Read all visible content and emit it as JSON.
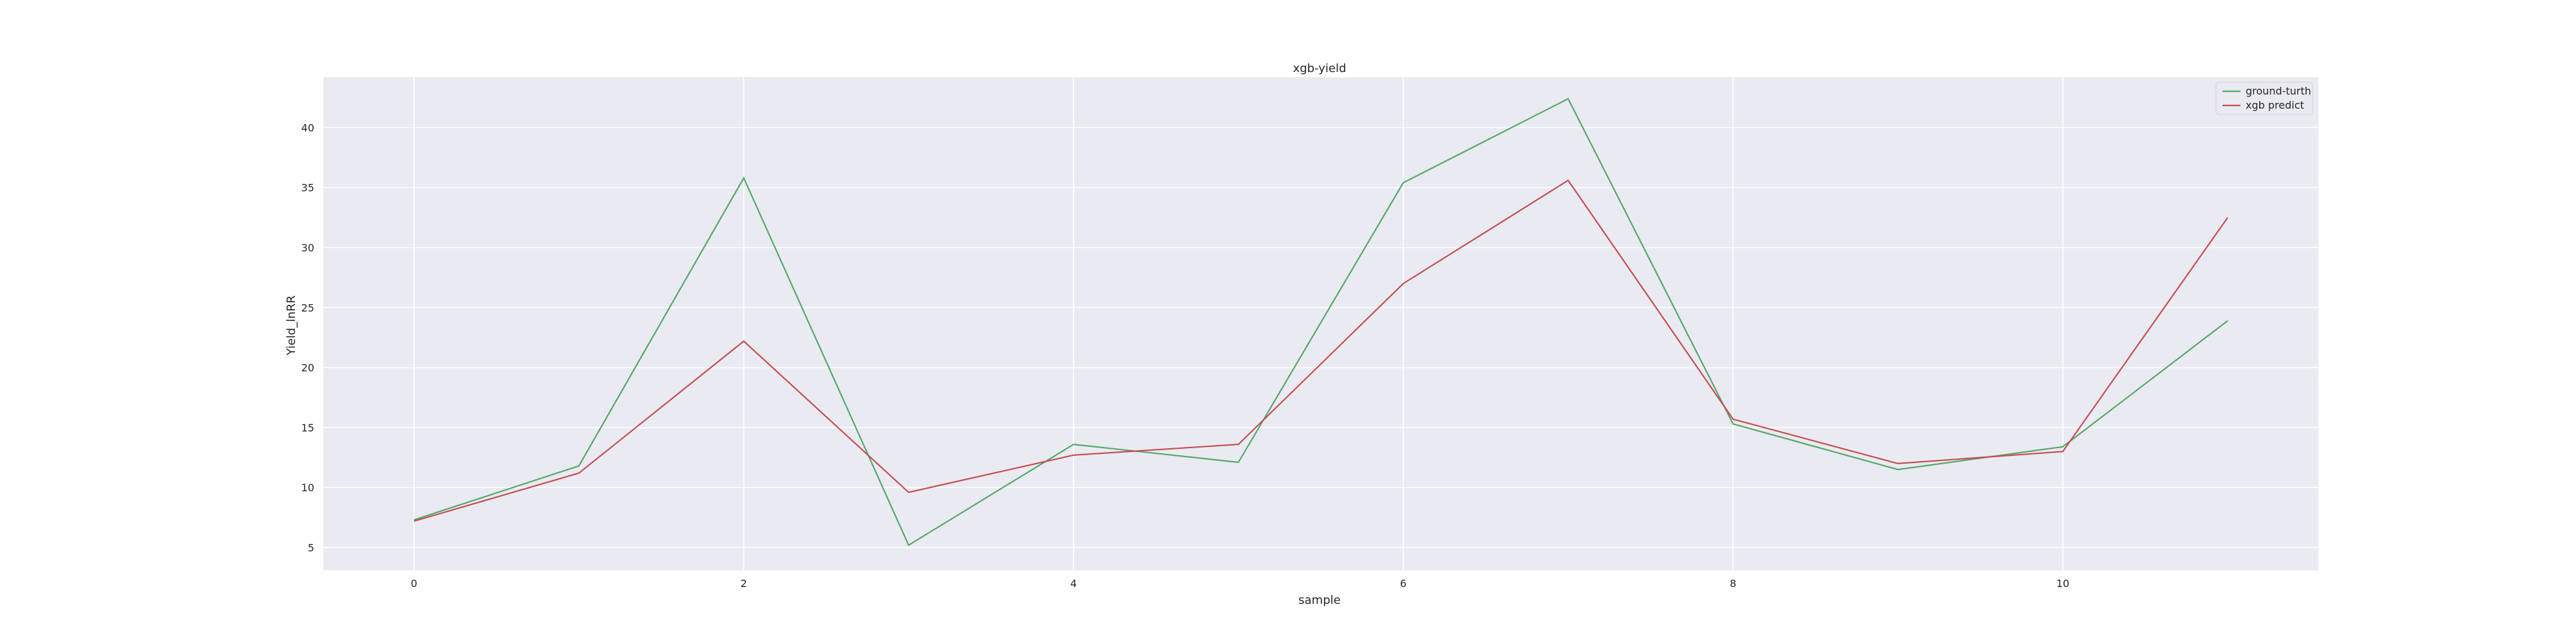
{
  "chart_data": {
    "type": "line",
    "title": "xgb-yield",
    "xlabel": "sample",
    "ylabel": "Yield_lnRR",
    "x": [
      0,
      1,
      2,
      3,
      4,
      5,
      6,
      7,
      8,
      9,
      10,
      11
    ],
    "xticks": [
      0,
      2,
      4,
      6,
      8,
      10
    ],
    "yticks": [
      5,
      10,
      15,
      20,
      25,
      30,
      35,
      40
    ],
    "xlim": [
      -0.55,
      11.55
    ],
    "ylim": [
      3.1,
      44.2
    ],
    "grid": true,
    "legend_position": "top-right",
    "background": "#eaeaf2",
    "series": [
      {
        "name": "ground-turth",
        "color": "#55a868",
        "values": [
          7.3,
          11.8,
          35.8,
          5.2,
          13.6,
          12.1,
          35.4,
          42.4,
          15.3,
          11.5,
          13.4,
          23.9
        ]
      },
      {
        "name": "xgb predict",
        "color": "#c44e52",
        "values": [
          7.2,
          11.2,
          22.2,
          9.6,
          12.7,
          13.6,
          27.0,
          35.6,
          15.7,
          12.0,
          13.0,
          32.5
        ]
      }
    ]
  }
}
